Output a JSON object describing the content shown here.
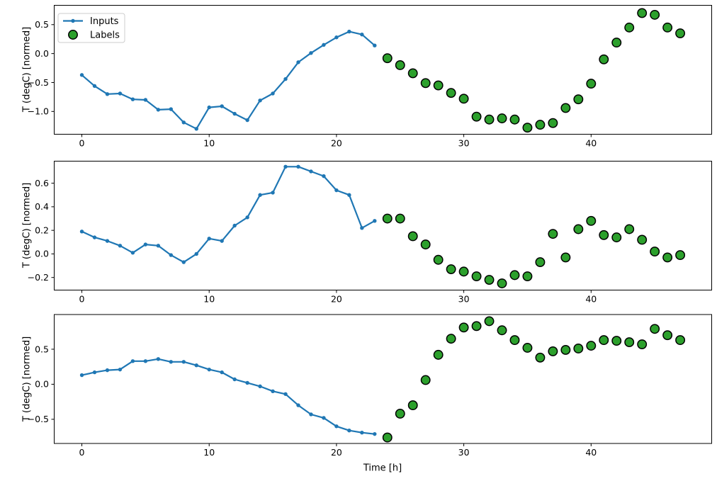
{
  "figure": {
    "background": "#ffffff",
    "xlabel": "Time [h]",
    "ylabel": "T (degC) [normed]",
    "colors": {
      "inputs_line": "#1f77b4",
      "labels_fill": "#2ca02c",
      "labels_edge": "#000000",
      "spine": "#000000",
      "text": "#000000",
      "legend_border": "#cccccc",
      "legend_bg": "#ffffff"
    },
    "legend": {
      "position": "upper left",
      "items": [
        {
          "label": "Inputs",
          "marker": "line-dot"
        },
        {
          "label": "Labels",
          "marker": "filled-circle"
        }
      ]
    }
  },
  "chart_data": [
    {
      "type": "line",
      "title": "",
      "xlabel": "",
      "ylabel": "T (degC) [normed]",
      "xlim": [
        -2.2,
        49.5
      ],
      "ylim": [
        -1.4,
        0.84
      ],
      "xticks": [
        0,
        10,
        20,
        30,
        40
      ],
      "xtick_labels": [
        "0",
        "10",
        "20",
        "30",
        "40"
      ],
      "yticks": [
        0.5,
        0.0,
        -0.5,
        -1.0
      ],
      "ytick_labels": [
        "0.5",
        "0.0",
        "−0.5",
        "−1.0"
      ],
      "grid": false,
      "legend_entries": [
        "Inputs",
        "Labels"
      ],
      "series": [
        {
          "name": "Inputs",
          "style": "line-dot",
          "x": [
            0,
            1,
            2,
            3,
            4,
            5,
            6,
            7,
            8,
            9,
            10,
            11,
            12,
            13,
            14,
            15,
            16,
            17,
            18,
            19,
            20,
            21,
            22,
            23
          ],
          "values": [
            -0.37,
            -0.56,
            -0.7,
            -0.69,
            -0.79,
            -0.8,
            -0.97,
            -0.96,
            -1.19,
            -1.3,
            -0.93,
            -0.91,
            -1.04,
            -1.15,
            -0.81,
            -0.69,
            -0.44,
            -0.15,
            0.01,
            0.15,
            0.28,
            0.38,
            0.33,
            0.14
          ]
        },
        {
          "name": "Labels",
          "style": "scatter-circle",
          "x": [
            24,
            25,
            26,
            27,
            28,
            29,
            30,
            31,
            32,
            33,
            34,
            35,
            36,
            37,
            38,
            39,
            40,
            41,
            42,
            43,
            44,
            45,
            46,
            47
          ],
          "values": [
            -0.08,
            -0.2,
            -0.34,
            -0.51,
            -0.55,
            -0.68,
            -0.78,
            -1.09,
            -1.14,
            -1.12,
            -1.14,
            -1.28,
            -1.23,
            -1.2,
            -0.94,
            -0.79,
            -0.52,
            -0.1,
            0.19,
            0.45,
            0.7,
            0.67,
            0.45,
            0.35
          ]
        }
      ]
    },
    {
      "type": "line",
      "title": "",
      "xlabel": "",
      "ylabel": "T (degC) [normed]",
      "xlim": [
        -2.2,
        49.5
      ],
      "ylim": [
        -0.31,
        0.79
      ],
      "xticks": [
        0,
        10,
        20,
        30,
        40
      ],
      "xtick_labels": [
        "0",
        "10",
        "20",
        "30",
        "40"
      ],
      "yticks": [
        0.6,
        0.4,
        0.2,
        0.0,
        -0.2
      ],
      "ytick_labels": [
        "0.6",
        "0.4",
        "0.2",
        "0.0",
        "−0.2"
      ],
      "grid": false,
      "series": [
        {
          "name": "Inputs",
          "style": "line-dot",
          "x": [
            0,
            1,
            2,
            3,
            4,
            5,
            6,
            7,
            8,
            9,
            10,
            11,
            12,
            13,
            14,
            15,
            16,
            17,
            18,
            19,
            20,
            21,
            22,
            23
          ],
          "values": [
            0.19,
            0.14,
            0.11,
            0.07,
            0.01,
            0.08,
            0.07,
            -0.01,
            -0.07,
            0.0,
            0.13,
            0.11,
            0.24,
            0.31,
            0.5,
            0.52,
            0.74,
            0.74,
            0.7,
            0.66,
            0.54,
            0.5,
            0.22,
            0.28
          ]
        },
        {
          "name": "Labels",
          "style": "scatter-circle",
          "x": [
            24,
            25,
            26,
            27,
            28,
            29,
            30,
            31,
            32,
            33,
            34,
            35,
            36,
            37,
            38,
            39,
            40,
            41,
            42,
            43,
            44,
            45,
            46,
            47
          ],
          "values": [
            0.3,
            0.3,
            0.15,
            0.08,
            -0.05,
            -0.13,
            -0.15,
            -0.19,
            -0.22,
            -0.25,
            -0.18,
            -0.19,
            -0.07,
            0.17,
            -0.03,
            0.21,
            0.28,
            0.16,
            0.14,
            0.21,
            0.12,
            0.02,
            -0.03,
            -0.01
          ]
        }
      ]
    },
    {
      "type": "line",
      "title": "",
      "xlabel": "Time [h]",
      "ylabel": "T (degC) [normed]",
      "xlim": [
        -2.2,
        49.5
      ],
      "ylim": [
        -0.85,
        1.0
      ],
      "xticks": [
        0,
        10,
        20,
        30,
        40
      ],
      "xtick_labels": [
        "0",
        "10",
        "20",
        "30",
        "40"
      ],
      "yticks": [
        0.5,
        0.0,
        -0.5
      ],
      "ytick_labels": [
        "0.5",
        "0.0",
        "−0.5"
      ],
      "grid": false,
      "series": [
        {
          "name": "Inputs",
          "style": "line-dot",
          "x": [
            0,
            1,
            2,
            3,
            4,
            5,
            6,
            7,
            8,
            9,
            10,
            11,
            12,
            13,
            14,
            15,
            16,
            17,
            18,
            19,
            20,
            21,
            22,
            23
          ],
          "values": [
            0.13,
            0.17,
            0.2,
            0.21,
            0.33,
            0.33,
            0.36,
            0.32,
            0.32,
            0.27,
            0.21,
            0.17,
            0.07,
            0.02,
            -0.03,
            -0.1,
            -0.14,
            -0.3,
            -0.43,
            -0.48,
            -0.6,
            -0.66,
            -0.69,
            -0.71
          ]
        },
        {
          "name": "Labels",
          "style": "scatter-circle",
          "x": [
            24,
            25,
            26,
            27,
            28,
            29,
            30,
            31,
            32,
            33,
            34,
            35,
            36,
            37,
            38,
            39,
            40,
            41,
            42,
            43,
            44,
            45,
            46,
            47
          ],
          "values": [
            -0.76,
            -0.42,
            -0.3,
            0.06,
            0.42,
            0.65,
            0.81,
            0.83,
            0.9,
            0.77,
            0.63,
            0.52,
            0.38,
            0.47,
            0.49,
            0.51,
            0.55,
            0.63,
            0.62,
            0.6,
            0.57,
            0.79,
            0.7,
            0.63
          ]
        }
      ]
    }
  ]
}
